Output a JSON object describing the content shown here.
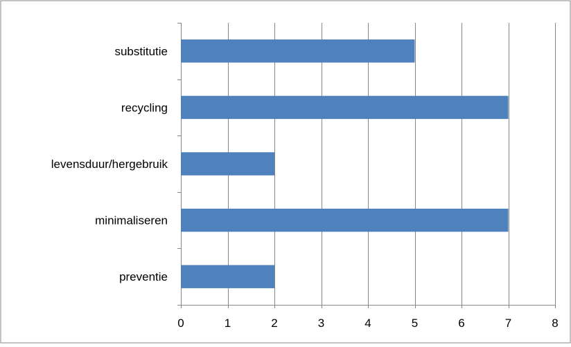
{
  "chart_data": {
    "type": "bar",
    "orientation": "horizontal",
    "categories": [
      "preventie",
      "minimaliseren",
      "levensduur/hergebruik",
      "recycling",
      "substitutie"
    ],
    "values": [
      2,
      7,
      2,
      7,
      5
    ],
    "xlim": [
      0,
      8
    ],
    "x_ticks": [
      "0",
      "1",
      "2",
      "3",
      "4",
      "5",
      "6",
      "7",
      "8"
    ],
    "title": "",
    "xlabel": "",
    "ylabel": "",
    "grid": "vertical",
    "legend": "none",
    "colors": {
      "bar": "#4f81bd",
      "grid": "#878787",
      "axis": "#878787",
      "border": "#878787"
    }
  }
}
